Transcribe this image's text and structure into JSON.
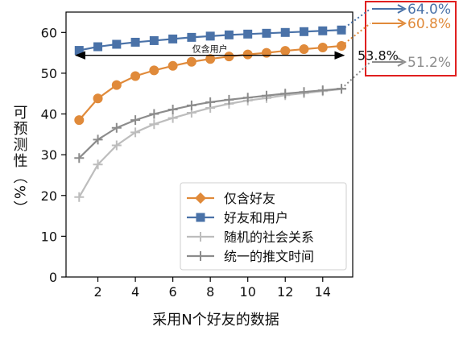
{
  "chart_data": {
    "type": "line",
    "xlabel": "采用N个好友的数据",
    "ylabel": "可预测性（%）",
    "xlim": [
      0.3,
      15.6
    ],
    "ylim": [
      0,
      65
    ],
    "xticks": [
      2,
      4,
      6,
      8,
      10,
      12,
      14
    ],
    "yticks": [
      0,
      10,
      20,
      30,
      40,
      50,
      60
    ],
    "legend_position": "lower-right",
    "grid": false,
    "series": [
      {
        "name": "仅含好友",
        "color": "#e08a3a",
        "marker": "circle",
        "x": [
          1,
          2,
          3,
          4,
          5,
          6,
          7,
          8,
          9,
          10,
          11,
          12,
          13,
          14,
          15
        ],
        "y": [
          38.5,
          43.8,
          47.1,
          49.3,
          50.7,
          51.8,
          52.8,
          53.5,
          54.1,
          54.6,
          55.0,
          55.5,
          55.9,
          56.3,
          56.7
        ]
      },
      {
        "name": "好友和用户",
        "color": "#4a72a8",
        "marker": "square",
        "x": [
          1,
          2,
          3,
          4,
          5,
          6,
          7,
          8,
          9,
          10,
          11,
          12,
          13,
          14,
          15
        ],
        "y": [
          55.6,
          56.5,
          57.1,
          57.6,
          58.0,
          58.4,
          58.8,
          59.1,
          59.4,
          59.6,
          59.8,
          60.0,
          60.2,
          60.4,
          60.6
        ]
      },
      {
        "name": "随机的社会关系",
        "color": "#bdbdbd",
        "marker": "plus",
        "x": [
          1,
          2,
          3,
          4,
          5,
          6,
          7,
          8,
          9,
          10,
          11,
          12,
          13,
          14,
          15
        ],
        "y": [
          19.6,
          27.6,
          32.3,
          35.5,
          37.5,
          39.0,
          40.3,
          41.5,
          42.5,
          43.3,
          43.9,
          44.6,
          45.1,
          45.6,
          46.1
        ]
      },
      {
        "name": "统一的推文时间",
        "color": "#8c8c8c",
        "marker": "plus",
        "x": [
          1,
          2,
          3,
          4,
          5,
          6,
          7,
          8,
          9,
          10,
          11,
          12,
          13,
          14,
          15
        ],
        "y": [
          29.2,
          33.7,
          36.6,
          38.5,
          40.0,
          41.1,
          42.1,
          42.9,
          43.5,
          44.0,
          44.5,
          45.0,
          45.4,
          45.8,
          46.2
        ]
      }
    ],
    "annotations": {
      "span_label": "仅含用户",
      "span_value": "53.8%",
      "span_y": 53.8,
      "span_x": [
        1,
        15
      ],
      "callouts": [
        {
          "label": "64.0%",
          "value": 64.0,
          "series": "好友和用户",
          "color": "#4a72a8"
        },
        {
          "label": "60.8%",
          "value": 60.8,
          "series": "仅含好友",
          "color": "#e08a3a"
        },
        {
          "label": "51.2%",
          "value": 51.2,
          "series": "统一的推文时间",
          "color": "#8c8c8c"
        }
      ],
      "box_color": "#e02020"
    }
  }
}
